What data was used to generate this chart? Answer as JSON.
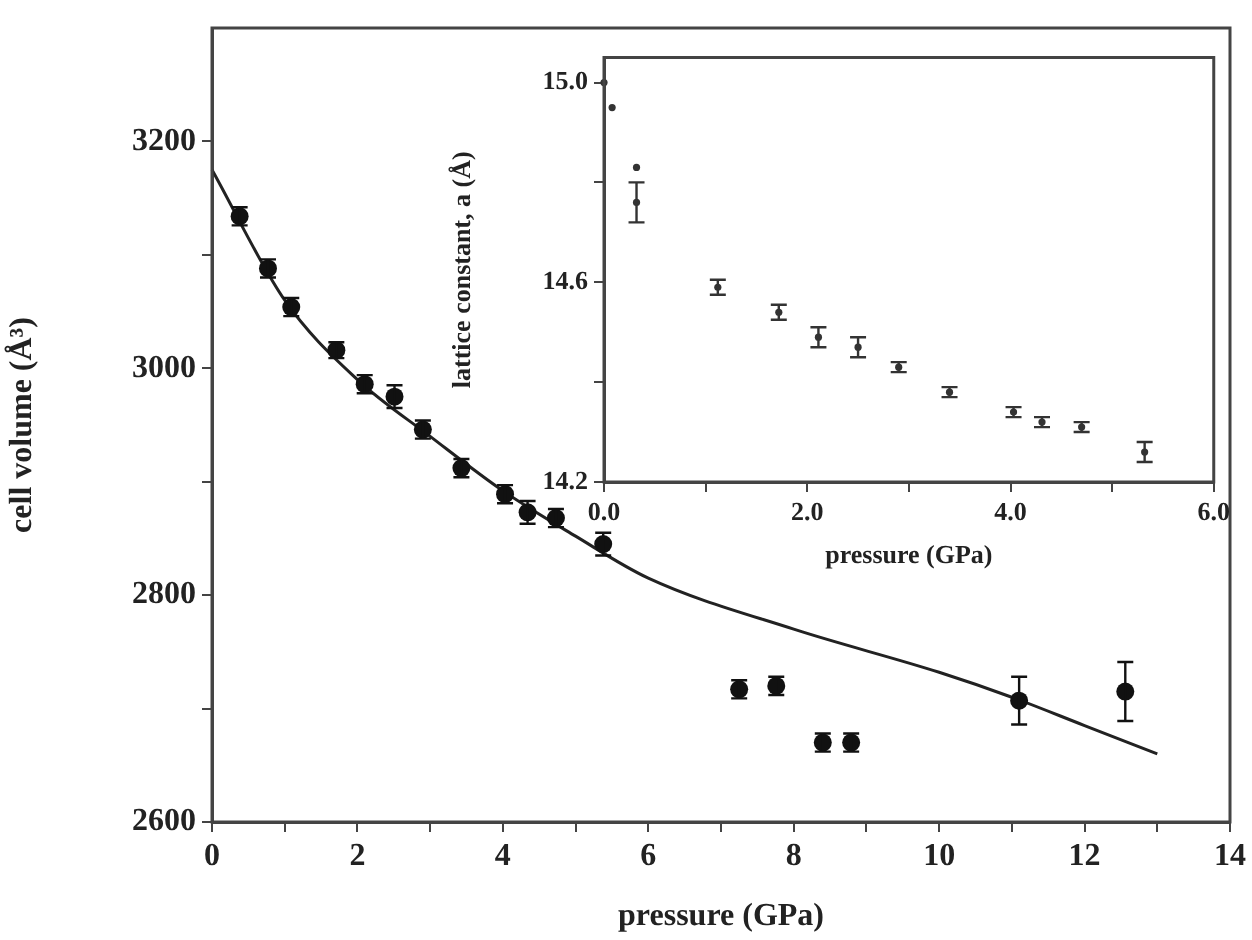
{
  "chart_data": [
    {
      "type": "scatter",
      "xlabel": "pressure (GPa)",
      "ylabel": "cell volume (Å³)",
      "xlim": [
        0,
        14
      ],
      "ylim": [
        2600,
        3300
      ],
      "xticks": [
        0,
        {
          "value": 1,
          "label": null
        },
        2,
        {
          "value": 3,
          "label": null
        },
        4,
        {
          "value": 5,
          "label": null
        },
        6,
        {
          "value": 7,
          "label": null
        },
        8,
        {
          "value": 9,
          "label": null
        },
        10,
        {
          "value": 11,
          "label": null
        },
        12,
        {
          "value": 13,
          "label": null
        },
        14
      ],
      "yticks": [
        2600,
        {
          "value": 2700,
          "label": null
        },
        2800,
        {
          "value": 2900,
          "label": null
        },
        3000,
        {
          "value": 3100,
          "label": null
        },
        3200
      ],
      "legend": false,
      "marker": "circle",
      "series": [
        {
          "color": "#111111",
          "x": [
            0.38,
            0.77,
            1.09,
            1.71,
            2.1,
            2.51,
            2.9,
            3.43,
            4.03,
            4.34,
            4.73,
            5.38,
            7.25,
            7.76,
            8.4,
            8.79,
            11.1,
            12.56
          ],
          "values": [
            3134,
            3088,
            3054,
            3016,
            2986,
            2975,
            2946,
            2912,
            2889,
            2873,
            2868,
            2845,
            2717,
            2720,
            2670,
            2670,
            2707,
            2715
          ],
          "errors": [
            8,
            8,
            8,
            7,
            8,
            10,
            8,
            8,
            8,
            10,
            8,
            10,
            8,
            8,
            8,
            8,
            21,
            26
          ]
        },
        {
          "type": "line",
          "marker": "none",
          "color": "#222222",
          "x": [
            0,
            1,
            2,
            3,
            4,
            5,
            6,
            8,
            10,
            11,
            12,
            13
          ],
          "values": [
            3175,
            3060,
            2990,
            2940,
            2892,
            2852,
            2815,
            2770,
            2732,
            2710,
            2685,
            2660
          ]
        }
      ]
    },
    {
      "type": "scatter",
      "xlabel": "pressure (GPa)",
      "ylabel": "lattice constant, a (Å)",
      "xlim": [
        0,
        6
      ],
      "ylim": [
        14.2,
        15.05
      ],
      "xticks": [
        {
          "value": 0,
          "label": "0.0"
        },
        {
          "value": 1,
          "label": null
        },
        {
          "value": 2,
          "label": "2.0"
        },
        {
          "value": 3,
          "label": null
        },
        {
          "value": 4,
          "label": "4.0"
        },
        {
          "value": 5,
          "label": null
        },
        {
          "value": 6,
          "label": "6.0"
        }
      ],
      "yticks": [
        {
          "value": 14.2,
          "label": "14.2"
        },
        {
          "value": 14.4,
          "label": null
        },
        {
          "value": 14.6,
          "label": "14.6"
        },
        {
          "value": 14.8,
          "label": null
        },
        {
          "value": 15,
          "label": "15.0"
        }
      ],
      "legend": false,
      "marker": "circle",
      "series": [
        {
          "color": "#333333",
          "x": [
            0,
            0.08,
            0.32,
            0.32,
            1.12,
            1.72,
            2.11,
            2.5,
            2.9,
            3.4,
            4.03,
            4.31,
            4.7,
            5.32
          ],
          "values": [
            15.0,
            14.95,
            14.83,
            14.76,
            14.59,
            14.54,
            14.49,
            14.47,
            14.43,
            14.38,
            14.34,
            14.32,
            14.31,
            14.26
          ],
          "errors": [
            null,
            null,
            null,
            0.04,
            0.015,
            0.015,
            0.02,
            0.02,
            0.01,
            0.01,
            0.01,
            0.01,
            0.01,
            0.02
          ]
        }
      ]
    }
  ]
}
